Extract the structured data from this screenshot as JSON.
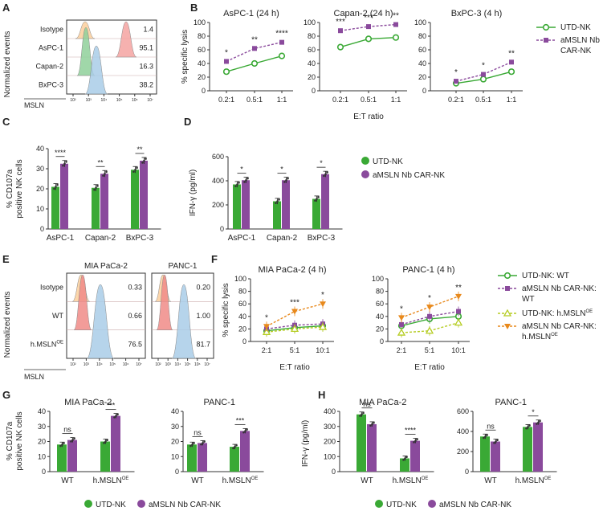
{
  "colors": {
    "green": "#3aa935",
    "purple": "#8a4a9c",
    "yellow": "#b5cc22",
    "orange": "#e8891c",
    "iso_fill": "#fbcf9c",
    "pos_fill": "#f4a3a1",
    "wt_fill": "#f08b87",
    "green_fill": "#8fd09a",
    "blue_fill": "#a9cce8"
  },
  "panel_labels": [
    "A",
    "B",
    "C",
    "D",
    "E",
    "F",
    "G",
    "H"
  ],
  "panelA": {
    "rows": [
      "Isotype",
      "AsPC-1",
      "Capan-2",
      "BxPC-3"
    ],
    "values": [
      "1.4",
      "95.1",
      "16.3",
      "38.2"
    ],
    "ylabel": "Normalized events",
    "xlabel": "MSLN",
    "ticks": [
      "10²",
      "10³",
      "10⁴",
      "10⁵",
      "10⁶",
      "10⁷"
    ]
  },
  "panelE": {
    "titles": [
      "MIA PaCa-2",
      "PANC-1"
    ],
    "rows": [
      "Isotype",
      "WT",
      "h.MSLN"
    ],
    "row_sup": "OE",
    "values1": [
      "0.33",
      "0.66",
      "76.5"
    ],
    "values2": [
      "0.20",
      "1.00",
      "81.7"
    ],
    "ylabel": "Normalized events",
    "xlabel": "MSLN",
    "ticks": [
      "10²",
      "10³",
      "10⁴",
      "10⁵",
      "10⁶",
      "10⁷"
    ]
  },
  "legendB": {
    "items": [
      "UTD-NK",
      "aMSLN Nb",
      "CAR-NK"
    ]
  },
  "legendD": {
    "items": [
      "UTD-NK",
      "aMSLN Nb CAR-NK"
    ]
  },
  "legendF": {
    "items": [
      "UTD-NK: WT",
      "aMSLN Nb CAR-NK:",
      "WT",
      "UTD-NK: h.MSLN",
      "aMSLN Nb CAR-NK:",
      "h.MSLN"
    ],
    "sup": "OE"
  },
  "legendG": {
    "items": [
      "UTD-NK",
      "aMSLN Nb CAR-NK"
    ]
  },
  "legendH": {
    "items": [
      "UTD-NK",
      "aMSLN Nb CAR-NK"
    ]
  },
  "chart_data": [
    {
      "id": "B1",
      "type": "line",
      "title": "AsPC-1 (24 h)",
      "ylabel": "% specific lysis",
      "xlabel": "",
      "categories": [
        "0.2:1",
        "0.5:1",
        "1:1"
      ],
      "ylim": [
        0,
        100
      ],
      "yticks": [
        0,
        20,
        40,
        60,
        80,
        100
      ],
      "series": [
        {
          "name": "UTD-NK",
          "values": [
            28,
            40,
            51
          ]
        },
        {
          "name": "aMSLN Nb CAR-NK",
          "values": [
            43,
            62,
            71
          ]
        }
      ],
      "sig": [
        "*",
        "**",
        "****"
      ]
    },
    {
      "id": "B2",
      "type": "line",
      "title": "Capan-2 (24 h)",
      "ylabel": "",
      "xlabel": "E:T ratio",
      "categories": [
        "0.2:1",
        "0.5:1",
        "1:1"
      ],
      "ylim": [
        0,
        100
      ],
      "yticks": [
        0,
        20,
        40,
        60,
        80,
        100
      ],
      "series": [
        {
          "name": "UTD-NK",
          "values": [
            64,
            76,
            78
          ]
        },
        {
          "name": "aMSLN Nb CAR-NK",
          "values": [
            88,
            94,
            97
          ]
        }
      ],
      "sig": [
        "***",
        "***",
        "**"
      ]
    },
    {
      "id": "B3",
      "type": "line",
      "title": "BxPC-3 (4 h)",
      "ylabel": "",
      "xlabel": "",
      "categories": [
        "0.2:1",
        "0.5:1",
        "1:1"
      ],
      "ylim": [
        0,
        100
      ],
      "yticks": [
        0,
        20,
        40,
        60,
        80,
        100
      ],
      "series": [
        {
          "name": "UTD-NK",
          "values": [
            11,
            17,
            28
          ]
        },
        {
          "name": "aMSLN Nb CAR-NK",
          "values": [
            14,
            24,
            42
          ]
        }
      ],
      "sig": [
        "*",
        "*",
        "**"
      ]
    },
    {
      "id": "C",
      "type": "bar",
      "ylabel": "% CD107a positive NK cells",
      "categories": [
        "AsPC-1",
        "Capan-2",
        "BxPC-3"
      ],
      "ylim": [
        0,
        40
      ],
      "yticks": [
        0,
        10,
        20,
        30,
        40
      ],
      "series": [
        {
          "name": "UTD-NK",
          "values": [
            21,
            20.5,
            29.5
          ]
        },
        {
          "name": "aMSLN Nb CAR-NK",
          "values": [
            32.5,
            27.5,
            34
          ]
        }
      ],
      "sig": [
        "****",
        "**",
        "**"
      ]
    },
    {
      "id": "D",
      "type": "bar",
      "ylabel": "IFN-γ (pg/ml)",
      "categories": [
        "AsPC-1",
        "Capan-2",
        "BxPC-3"
      ],
      "ylim": [
        0,
        600
      ],
      "yticks": [
        0,
        200,
        400,
        600
      ],
      "series": [
        {
          "name": "UTD-NK",
          "values": [
            370,
            230,
            250
          ]
        },
        {
          "name": "aMSLN Nb CAR-NK",
          "values": [
            405,
            405,
            455
          ]
        }
      ],
      "sig": [
        "*",
        "*",
        "*"
      ]
    },
    {
      "id": "F1",
      "type": "line",
      "title": "MIA PaCa-2 (4 h)",
      "ylabel": "% specific lysis",
      "xlabel": "E:T ratio",
      "categories": [
        "2:1",
        "5:1",
        "10:1"
      ],
      "ylim": [
        0,
        100
      ],
      "yticks": [
        0,
        20,
        40,
        60,
        80,
        100
      ],
      "series": [
        {
          "name": "UTD-NK: WT",
          "values": [
            17,
            22,
            25
          ]
        },
        {
          "name": "aMSLN Nb CAR-NK: WT",
          "values": [
            20,
            26,
            28
          ]
        },
        {
          "name": "UTD-NK: h.MSLNOE",
          "values": [
            15,
            20,
            23
          ]
        },
        {
          "name": "aMSLN Nb CAR-NK: h.MSLNOE",
          "values": [
            24,
            48,
            60
          ]
        }
      ],
      "sig": [
        "*",
        "***",
        "*"
      ]
    },
    {
      "id": "F2",
      "type": "line",
      "title": "PANC-1 (4 h)",
      "ylabel": "",
      "xlabel": "E:T ratio",
      "categories": [
        "2:1",
        "5:1",
        "10:1"
      ],
      "ylim": [
        0,
        100
      ],
      "yticks": [
        0,
        20,
        40,
        60,
        80,
        100
      ],
      "series": [
        {
          "name": "UTD-NK: WT",
          "values": [
            25,
            36,
            40
          ]
        },
        {
          "name": "aMSLN Nb CAR-NK: WT",
          "values": [
            27,
            40,
            48
          ]
        },
        {
          "name": "UTD-NK: h.MSLNOE",
          "values": [
            14,
            17,
            30
          ]
        },
        {
          "name": "aMSLN Nb CAR-NK: h.MSLNOE",
          "values": [
            38,
            55,
            72
          ]
        }
      ],
      "sig": [
        "*",
        "*",
        "**"
      ]
    },
    {
      "id": "G1",
      "type": "bar",
      "title": "MIA PaCa-2",
      "ylabel": "% CD107a positive NK cells",
      "categories": [
        "WT",
        "h.MSLN"
      ],
      "ylim": [
        0,
        40
      ],
      "yticks": [
        0,
        10,
        20,
        30,
        40
      ],
      "series": [
        {
          "name": "UTD-NK",
          "values": [
            18,
            20
          ]
        },
        {
          "name": "aMSLN Nb CAR-NK",
          "values": [
            21,
            37
          ]
        }
      ],
      "sig": [
        "ns",
        "***"
      ]
    },
    {
      "id": "G2",
      "type": "bar",
      "title": "PANC-1",
      "ylabel": "",
      "categories": [
        "WT",
        "h.MSLN"
      ],
      "ylim": [
        0,
        40
      ],
      "yticks": [
        0,
        10,
        20,
        30,
        40
      ],
      "series": [
        {
          "name": "UTD-NK",
          "values": [
            18,
            16.5
          ]
        },
        {
          "name": "aMSLN Nb CAR-NK",
          "values": [
            19,
            27
          ]
        }
      ],
      "sig": [
        "ns",
        "***"
      ]
    },
    {
      "id": "H1",
      "type": "bar",
      "title": "MIA PaCa-2",
      "ylabel": "IFN-γ (pg/ml)",
      "categories": [
        "WT",
        "h.MSLN"
      ],
      "ylim": [
        0,
        400
      ],
      "yticks": [
        0,
        100,
        200,
        300,
        400
      ],
      "series": [
        {
          "name": "UTD-NK",
          "values": [
            380,
            88
          ]
        },
        {
          "name": "aMSLN Nb CAR-NK",
          "values": [
            315,
            205
          ]
        }
      ],
      "sig": [
        "ns",
        "****"
      ]
    },
    {
      "id": "H2",
      "type": "bar",
      "title": "PANC-1",
      "ylabel": "",
      "categories": [
        "WT",
        "h.MSLN"
      ],
      "ylim": [
        0,
        600
      ],
      "yticks": [
        0,
        200,
        400,
        600
      ],
      "series": [
        {
          "name": "UTD-NK",
          "values": [
            350,
            445
          ]
        },
        {
          "name": "aMSLN Nb CAR-NK",
          "values": [
            300,
            490
          ]
        }
      ],
      "sig": [
        "ns",
        "*"
      ]
    }
  ]
}
